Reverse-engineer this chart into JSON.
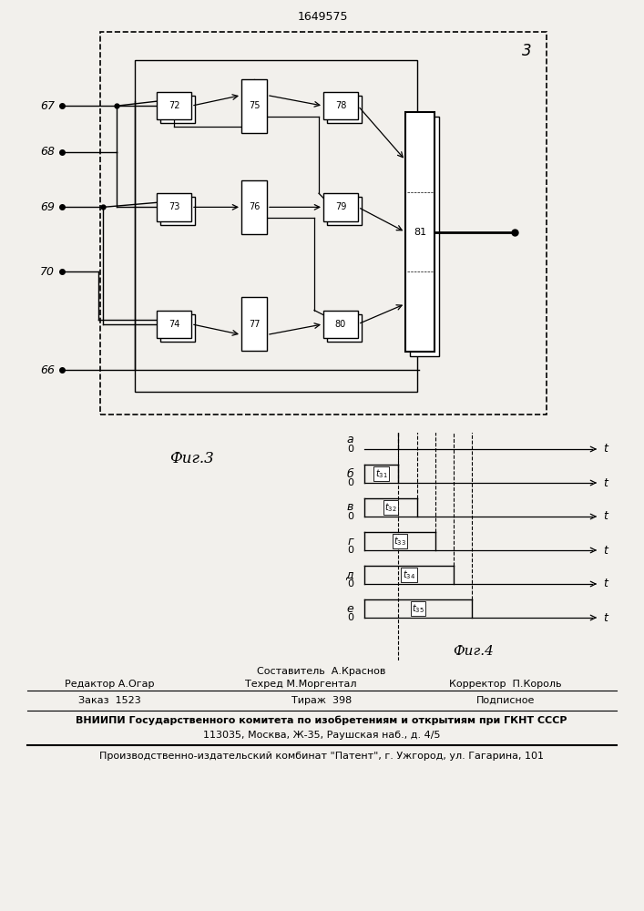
{
  "title": "1649575",
  "fig3_label": "3",
  "fig3_caption": "Фиг.3",
  "fig4_caption": "Фиг.4",
  "background": "#f2f0ec",
  "input_labels": [
    "67",
    "68",
    "69",
    "70",
    "66"
  ],
  "block_labels_col1": [
    "72",
    "73",
    "74"
  ],
  "block_labels_col2": [
    "75",
    "76",
    "77"
  ],
  "block_labels_col3": [
    "78",
    "79",
    "80"
  ],
  "block_label_81": "81",
  "waveform_labels_left": [
    "a",
    "б",
    "в",
    "г",
    "д",
    "е"
  ],
  "footer_sestavitel": "Составитель  А.Краснов",
  "footer_redaktor": "Редактор А.Огар",
  "footer_tehred": "Техред М.Моргентал",
  "footer_korrektor": "Корректор  П.Король",
  "footer_zakaz": "Заказ  1523",
  "footer_tirazh": "Тираж  398",
  "footer_podpisnoe": "Подписное",
  "footer_vniipи": "ВНИИПИ Государственного комитета по изобретениям и открытиям при ГКНТ СССР",
  "footer_address": "113035, Москва, Ж-35, Раушская наб., д. 4/5",
  "footer_kombinat": "Производственно-издательский комбинат \"Патент\", г. Ужгород, ул. Гагарина, 101"
}
